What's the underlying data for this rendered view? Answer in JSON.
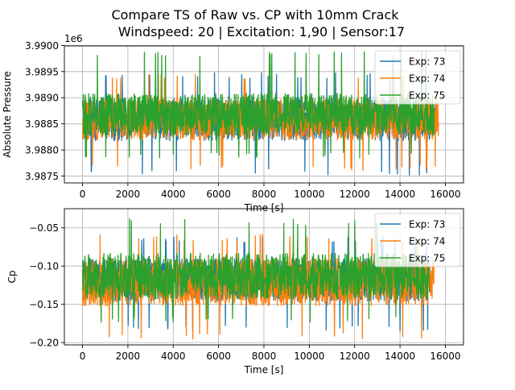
{
  "figure": {
    "title_line1": "Compare TS of Raw vs. CP with 10mm Crack",
    "title_line2": "Windspeed: 20 | Excitation: 1,90 | Sensor:17"
  },
  "colors": {
    "exp73": "#1f77b4",
    "exp74": "#ff7f0e",
    "exp75": "#2ca02c",
    "grid": "#b0b0b0"
  },
  "chart_data": [
    {
      "type": "line",
      "xlabel": "Time [s]",
      "ylabel": "Absolute Pressure",
      "offset_text": "1e6",
      "xlim": [
        -800,
        16800
      ],
      "ylim": [
        3.98737,
        3.98999
      ],
      "xticks": [
        0,
        2000,
        4000,
        6000,
        8000,
        10000,
        12000,
        14000,
        16000
      ],
      "xtick_labels": [
        "0",
        "2000",
        "4000",
        "6000",
        "8000",
        "10000",
        "12000",
        "14000",
        "16000"
      ],
      "yticks": [
        3.9875,
        3.988,
        3.9885,
        3.989,
        3.9895,
        3.99
      ],
      "ytick_labels": [
        "3.9875",
        "3.9880",
        "3.9885",
        "3.9890",
        "3.9895",
        "3.9900"
      ],
      "grid": true,
      "legend_position": "upper right",
      "series": [
        {
          "name": "Exp: 73",
          "x_start": 0,
          "x_end": 15600,
          "center": 3.98858,
          "half_range": 0.0004,
          "spike_low": 3.98752,
          "spike_high": 3.98948
        },
        {
          "name": "Exp: 74",
          "x_start": 0,
          "x_end": 15700,
          "center": 3.98858,
          "half_range": 0.00039,
          "spike_low": 3.9876,
          "spike_high": 3.98945
        },
        {
          "name": "Exp: 75",
          "x_start": 0,
          "x_end": 15500,
          "center": 3.98868,
          "half_range": 0.0004,
          "spike_low": 3.98785,
          "spike_high": 3.9899
        }
      ]
    },
    {
      "type": "line",
      "xlabel": "Time [s]",
      "ylabel": "Cp",
      "xlim": [
        -800,
        16800
      ],
      "ylim": [
        -0.203,
        -0.025
      ],
      "xticks": [
        0,
        2000,
        4000,
        6000,
        8000,
        10000,
        12000,
        14000,
        16000
      ],
      "xtick_labels": [
        "0",
        "2000",
        "4000",
        "6000",
        "8000",
        "10000",
        "12000",
        "14000",
        "16000"
      ],
      "yticks": [
        -0.2,
        -0.15,
        -0.1,
        -0.05
      ],
      "ytick_labels": [
        "−0.20",
        "−0.15",
        "−0.10",
        "−0.05"
      ],
      "grid": true,
      "legend_position": "upper right",
      "series": [
        {
          "name": "Exp: 73",
          "x_start": 0,
          "x_end": 15400,
          "center": -0.118,
          "half_range": 0.028,
          "spike_low": -0.185,
          "spike_high": -0.062
        },
        {
          "name": "Exp: 74",
          "x_start": 0,
          "x_end": 15500,
          "center": -0.121,
          "half_range": 0.031,
          "spike_low": -0.196,
          "spike_high": -0.058
        },
        {
          "name": "Exp: 75",
          "x_start": 0,
          "x_end": 15300,
          "center": -0.113,
          "half_range": 0.03,
          "spike_low": -0.175,
          "spike_high": -0.038
        }
      ]
    }
  ]
}
